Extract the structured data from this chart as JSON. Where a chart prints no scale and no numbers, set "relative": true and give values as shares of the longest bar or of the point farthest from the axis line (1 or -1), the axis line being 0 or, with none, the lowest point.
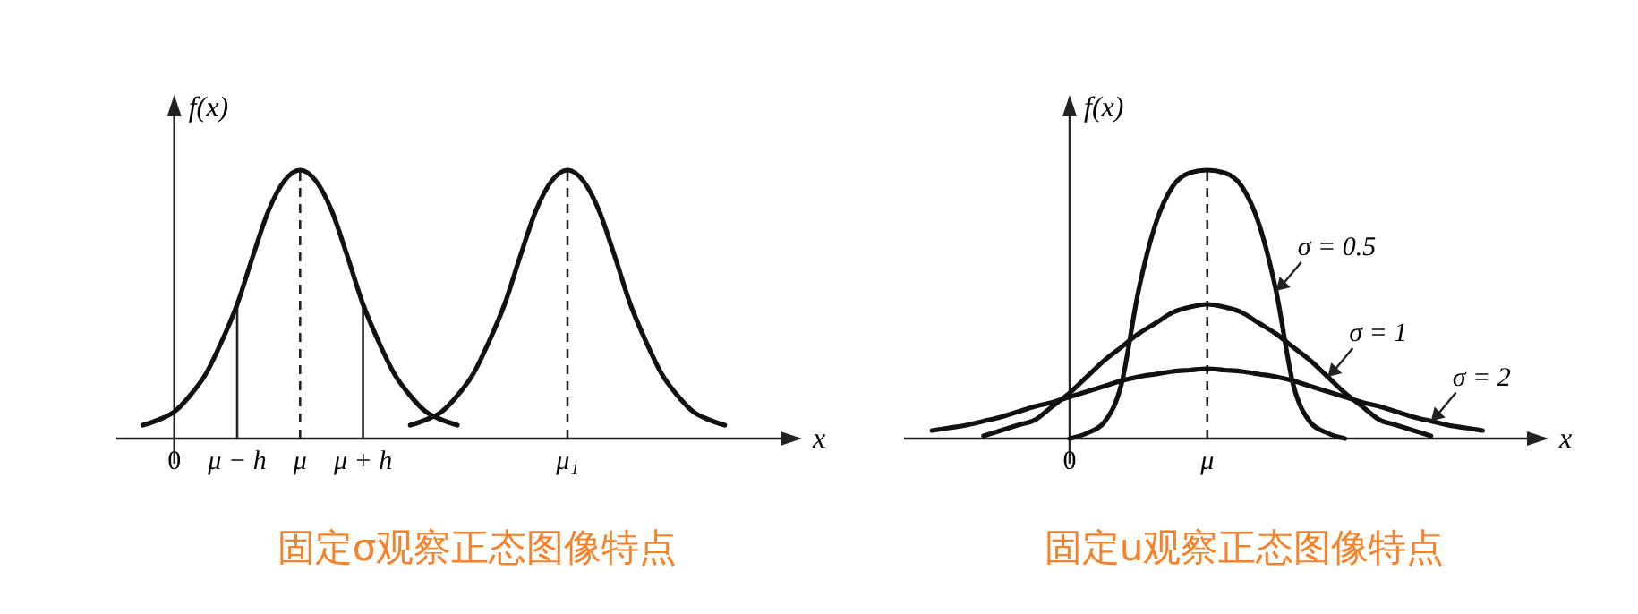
{
  "chart_data": [
    {
      "type": "line",
      "title": "固定σ观察正态图像特点",
      "xlabel": "x",
      "ylabel": "f(x)",
      "relative": true,
      "line_style": "solid",
      "categories": [
        null,
        null,
        null,
        "0",
        null,
        null,
        null,
        "μ − h",
        null,
        null,
        null,
        "μ",
        null,
        null,
        null,
        "μ + h",
        null,
        null,
        null,
        null,
        null,
        null,
        null,
        null,
        null,
        null,
        null,
        null,
        "μ₁",
        null,
        null,
        null,
        null,
        null,
        null,
        null,
        null,
        null,
        null,
        null,
        null,
        null,
        null
      ],
      "series": [
        {
          "color": "#111111",
          "values": [
            null,
            0.05,
            0.07,
            0.1,
            0.16,
            0.24,
            0.36,
            0.5,
            0.68,
            0.85,
            0.96,
            1,
            0.96,
            0.85,
            0.68,
            0.5,
            0.36,
            0.24,
            0.16,
            0.1,
            0.07,
            0.05,
            null,
            null,
            null,
            null,
            null,
            null,
            null,
            null,
            null,
            null,
            null,
            null,
            null,
            null,
            null,
            null,
            null,
            null,
            null,
            null,
            null
          ]
        },
        {
          "color": "#111111",
          "values": [
            null,
            null,
            null,
            null,
            null,
            null,
            null,
            null,
            null,
            null,
            null,
            null,
            null,
            null,
            null,
            null,
            null,
            null,
            0.05,
            0.07,
            0.1,
            0.16,
            0.24,
            0.36,
            0.5,
            0.68,
            0.85,
            0.96,
            1,
            0.96,
            0.85,
            0.68,
            0.5,
            0.36,
            0.24,
            0.16,
            0.1,
            0.07,
            0.05,
            null,
            null,
            null,
            null
          ]
        }
      ],
      "ref_lines": [
        {
          "axis": "x",
          "value": "μ − h",
          "line_style": "solid"
        },
        {
          "axis": "x",
          "value": "μ",
          "line_style": "dashed"
        },
        {
          "axis": "x",
          "value": "μ + h",
          "line_style": "solid"
        },
        {
          "axis": "x",
          "value": "μ₁",
          "line_style": "dashed"
        }
      ]
    },
    {
      "type": "line",
      "title": "固定u观察正态图像特点",
      "xlabel": "x",
      "ylabel": "f(x)",
      "relative": true,
      "line_style": "solid",
      "categories": [
        null,
        null,
        null,
        null,
        null,
        null,
        null,
        null,
        null,
        "0",
        null,
        null,
        null,
        null,
        null,
        null,
        null,
        "μ",
        null,
        null,
        null,
        null,
        null,
        null,
        null,
        null,
        null,
        null,
        null,
        null,
        null,
        null,
        null,
        null,
        null,
        null,
        null
      ],
      "series": [
        {
          "color": "#111111",
          "values": [
            null,
            null,
            null,
            null,
            null,
            null,
            null,
            null,
            null,
            0,
            0.02,
            0.06,
            0.2,
            0.55,
            0.8,
            0.94,
            0.99,
            1,
            0.99,
            0.94,
            0.8,
            0.55,
            0.2,
            0.06,
            0.02,
            0,
            null,
            null,
            null,
            null,
            null,
            null,
            null,
            null,
            null,
            null,
            null
          ]
        },
        {
          "color": "#111111",
          "values": [
            null,
            null,
            null,
            null,
            0.01,
            0.03,
            0.05,
            0.07,
            0.12,
            0.17,
            0.23,
            0.29,
            0.34,
            0.39,
            0.43,
            0.47,
            0.49,
            0.5,
            0.49,
            0.47,
            0.43,
            0.39,
            0.34,
            0.29,
            0.23,
            0.17,
            0.12,
            0.07,
            0.05,
            0.03,
            0.01,
            null,
            null,
            null,
            null,
            null,
            null
          ]
        },
        {
          "color": "#111111",
          "values": [
            null,
            0.03,
            0.04,
            0.05,
            0.065,
            0.08,
            0.1,
            0.12,
            0.135,
            0.155,
            0.175,
            0.195,
            0.215,
            0.23,
            0.24,
            0.25,
            0.255,
            0.26,
            0.255,
            0.25,
            0.24,
            0.23,
            0.215,
            0.195,
            0.175,
            0.155,
            0.135,
            0.12,
            0.1,
            0.08,
            0.065,
            0.05,
            0.04,
            0.03,
            null,
            null,
            null
          ]
        }
      ],
      "ref_lines": [
        {
          "axis": "x",
          "value": "μ",
          "line_style": "dashed"
        }
      ],
      "annotations": [
        "σ = 0.5",
        "σ = 1",
        "σ = 2"
      ]
    }
  ]
}
